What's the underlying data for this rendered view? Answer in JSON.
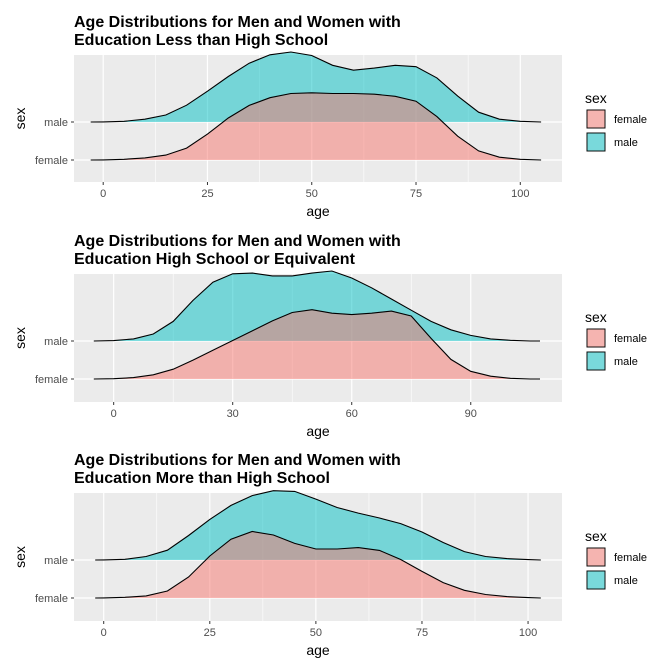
{
  "chart_data": [
    {
      "type": "area",
      "subtype": "ridgeline-density",
      "title": "Age Distributions for Men and Women with\nEducation Less than High School",
      "xlabel": "age",
      "ylabel": "sex",
      "xlim": [
        -7,
        110
      ],
      "xticks": [
        0,
        25,
        50,
        75,
        100
      ],
      "categories": [
        "female",
        "male"
      ],
      "grid": true,
      "legend": {
        "title": "sex",
        "position": "right",
        "entries": [
          "female",
          "male"
        ]
      },
      "series": [
        {
          "name": "female",
          "color": "#F8766D",
          "x": [
            -3,
            0,
            5,
            10,
            15,
            20,
            25,
            30,
            35,
            40,
            45,
            50,
            55,
            60,
            65,
            70,
            75,
            80,
            85,
            90,
            95,
            100,
            105
          ],
          "density": [
            0.0,
            0.002,
            0.01,
            0.03,
            0.07,
            0.17,
            0.37,
            0.6,
            0.78,
            0.89,
            0.95,
            0.96,
            0.95,
            0.95,
            0.94,
            0.91,
            0.84,
            0.62,
            0.34,
            0.13,
            0.04,
            0.01,
            0.0
          ]
        },
        {
          "name": "male",
          "color": "#00BFC4",
          "x": [
            -3,
            0,
            5,
            10,
            15,
            20,
            25,
            30,
            35,
            40,
            45,
            50,
            55,
            60,
            65,
            70,
            75,
            80,
            85,
            90,
            95,
            100,
            105
          ],
          "density": [
            0.0,
            0.002,
            0.01,
            0.04,
            0.1,
            0.24,
            0.44,
            0.65,
            0.84,
            0.96,
            1.0,
            0.95,
            0.81,
            0.74,
            0.77,
            0.81,
            0.79,
            0.63,
            0.37,
            0.14,
            0.04,
            0.01,
            0.0
          ]
        }
      ]
    },
    {
      "type": "area",
      "subtype": "ridgeline-density",
      "title": "Age Distributions for Men and Women with\nEducation High School or Equivalent",
      "xlabel": "age",
      "ylabel": "sex",
      "xlim": [
        -10,
        113
      ],
      "xticks": [
        0,
        30,
        60,
        90
      ],
      "categories": [
        "female",
        "male"
      ],
      "grid": true,
      "legend": {
        "title": "sex",
        "position": "right",
        "entries": [
          "female",
          "male"
        ]
      },
      "series": [
        {
          "name": "female",
          "color": "#F8766D",
          "x": [
            -5,
            0,
            5,
            10,
            15,
            20,
            25,
            30,
            35,
            40,
            45,
            50,
            55,
            60,
            65,
            70,
            75,
            80,
            85,
            90,
            95,
            100,
            105
          ],
          "density": [
            0.0,
            0.004,
            0.02,
            0.06,
            0.14,
            0.27,
            0.41,
            0.55,
            0.69,
            0.83,
            0.95,
            0.99,
            0.94,
            0.92,
            0.94,
            0.97,
            0.9,
            0.58,
            0.28,
            0.11,
            0.04,
            0.01,
            0.0
          ]
        },
        {
          "name": "male",
          "color": "#00BFC4",
          "x": [
            -5,
            0,
            5,
            10,
            15,
            20,
            25,
            30,
            35,
            40,
            45,
            50,
            55,
            60,
            65,
            70,
            75,
            80,
            85,
            90,
            95,
            100,
            105
          ],
          "density": [
            0.0,
            0.005,
            0.03,
            0.1,
            0.28,
            0.58,
            0.84,
            0.96,
            0.97,
            0.93,
            0.93,
            0.97,
            1.0,
            0.9,
            0.76,
            0.6,
            0.44,
            0.28,
            0.16,
            0.08,
            0.03,
            0.01,
            0.0
          ]
        }
      ]
    },
    {
      "type": "area",
      "subtype": "ridgeline-density",
      "title": "Age Distributions for Men and Women with\nEducation More than High School",
      "xlabel": "age",
      "ylabel": "sex",
      "xlim": [
        -7,
        108
      ],
      "xticks": [
        0,
        25,
        50,
        75,
        100
      ],
      "categories": [
        "female",
        "male"
      ],
      "grid": true,
      "legend": {
        "title": "sex",
        "position": "right",
        "entries": [
          "female",
          "male"
        ]
      },
      "series": [
        {
          "name": "female",
          "color": "#F8766D",
          "x": [
            -2,
            0,
            5,
            10,
            15,
            20,
            25,
            30,
            35,
            40,
            45,
            50,
            55,
            60,
            65,
            70,
            75,
            80,
            85,
            90,
            95,
            100,
            103
          ],
          "density": [
            0.0,
            0.002,
            0.01,
            0.03,
            0.1,
            0.3,
            0.6,
            0.84,
            0.95,
            0.9,
            0.78,
            0.7,
            0.7,
            0.72,
            0.68,
            0.55,
            0.38,
            0.22,
            0.11,
            0.05,
            0.02,
            0.005,
            0.0
          ]
        },
        {
          "name": "male",
          "color": "#00BFC4",
          "x": [
            -2,
            0,
            5,
            10,
            15,
            20,
            25,
            30,
            35,
            40,
            45,
            50,
            55,
            60,
            65,
            70,
            75,
            80,
            85,
            90,
            95,
            100,
            103
          ],
          "density": [
            0.0,
            0.002,
            0.01,
            0.05,
            0.14,
            0.35,
            0.58,
            0.78,
            0.92,
            0.99,
            0.98,
            0.87,
            0.75,
            0.67,
            0.6,
            0.52,
            0.4,
            0.25,
            0.12,
            0.05,
            0.02,
            0.005,
            0.0
          ]
        }
      ]
    }
  ]
}
